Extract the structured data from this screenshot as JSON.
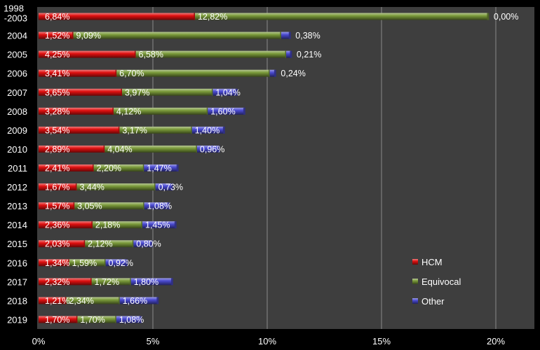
{
  "chart_data": {
    "type": "bar",
    "orientation": "horizontal",
    "stacked": true,
    "categories": [
      "1998\n-2003",
      "2004",
      "2005",
      "2006",
      "2007",
      "2008",
      "2009",
      "2010",
      "2011",
      "2012",
      "2013",
      "2014",
      "2015",
      "2016",
      "2017",
      "2018",
      "2019"
    ],
    "series": [
      {
        "name": "HCM",
        "color": "#e01010",
        "values": [
          6.84,
          1.52,
          4.25,
          3.41,
          3.65,
          3.28,
          3.54,
          2.89,
          2.41,
          1.67,
          1.57,
          2.36,
          2.03,
          1.34,
          2.32,
          1.21,
          1.7
        ],
        "labels": [
          "6,84%",
          "1,52%",
          "4,25%",
          "3,41%",
          "3,65%",
          "3,28%",
          "3,54%",
          "2,89%",
          "2,41%",
          "1,67%",
          "1,57%",
          "2,36%",
          "2,03%",
          "1,34%",
          "2,32%",
          "1,21%",
          "1,70%"
        ]
      },
      {
        "name": "Equivocal",
        "color": "#7a9a3a",
        "values": [
          12.82,
          9.09,
          6.58,
          6.7,
          3.97,
          4.12,
          3.17,
          4.04,
          2.2,
          3.44,
          3.05,
          2.18,
          2.12,
          1.59,
          1.72,
          2.34,
          1.7
        ],
        "labels": [
          "12,82%",
          "9,09%",
          "6,58%",
          "6,70%",
          "3,97%",
          "4,12%",
          "3,17%",
          "4,04%",
          "2,20%",
          "3,44%",
          "3,05%",
          "2,18%",
          "2,12%",
          "1,59%",
          "1,72%",
          "2,34%",
          "1,70%"
        ]
      },
      {
        "name": "Other",
        "color": "#4a4ad0",
        "values": [
          0.0,
          0.38,
          0.21,
          0.24,
          1.04,
          1.6,
          1.4,
          0.96,
          1.47,
          0.73,
          1.08,
          1.45,
          0.8,
          0.92,
          1.8,
          1.66,
          1.08
        ],
        "labels": [
          "0,00%",
          "0,38%",
          "0,21%",
          "0,24%",
          "1,04%",
          "1,60%",
          "1,40%",
          "0,96%",
          "1,47%",
          "0,73%",
          "1,08%",
          "1,45%",
          "0,80%",
          "0,92%",
          "1,80%",
          "1,66%",
          "1,08%"
        ]
      }
    ],
    "x_ticks": [
      0,
      5,
      10,
      15,
      20
    ],
    "x_tick_labels": [
      "0%",
      "5%",
      "10%",
      "15%",
      "20%"
    ],
    "xlim": [
      0,
      21.5
    ],
    "grid": true,
    "legend_position": "bottom-right",
    "title": "",
    "xlabel": "",
    "ylabel": ""
  },
  "colors": {
    "background": "#000000",
    "plot_area": "#3e3e3e",
    "gridline": "#8a8a8a"
  }
}
